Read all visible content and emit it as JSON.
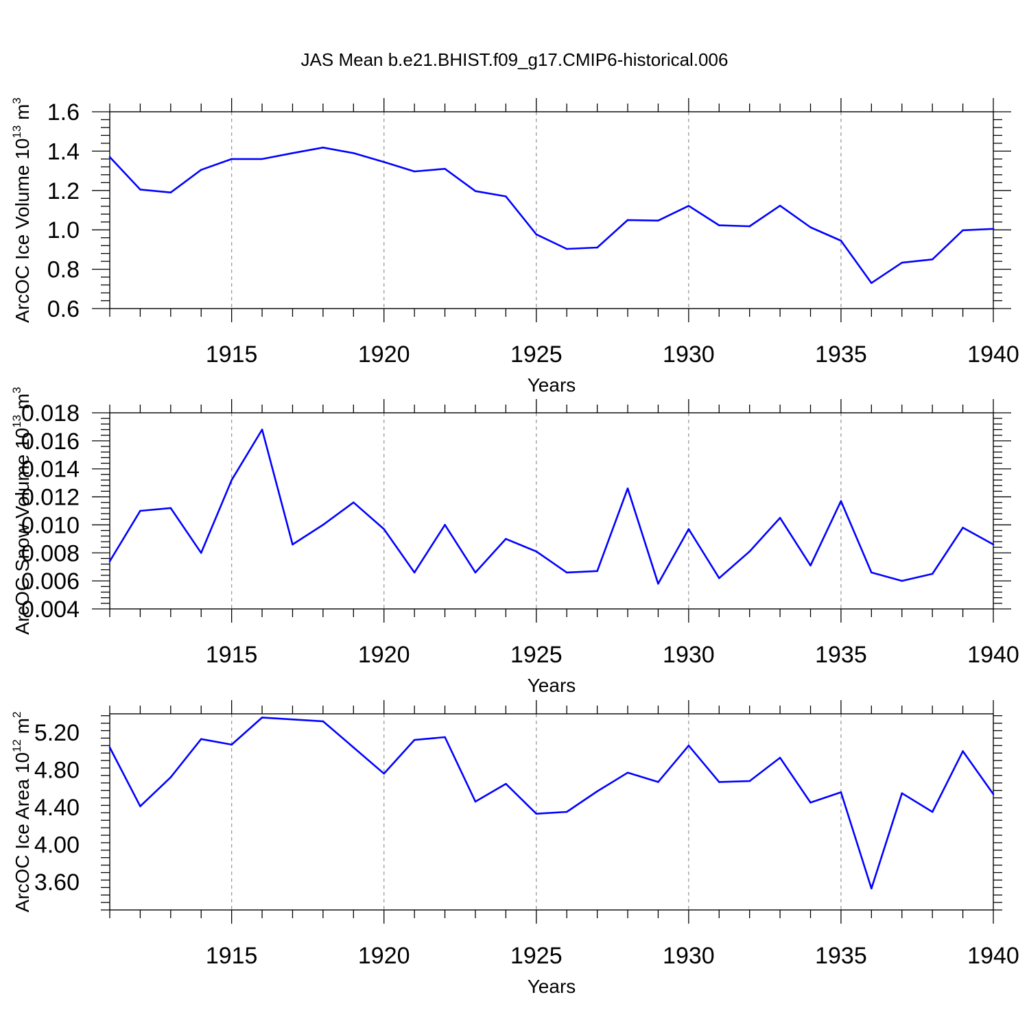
{
  "figure": {
    "title": "JAS Mean b.e21.BHIST.f09_g17.CMIP6-historical.006",
    "series_color": "#0000ff"
  },
  "chart_data": [
    {
      "type": "line",
      "ylabel_main": "ArcOC Ice Volume 10",
      "ylabel_exp": "13",
      "ylabel_unit": " m",
      "ylabel_unit_exp": "3",
      "xlabel": "Years",
      "xlim": [
        1911,
        1940
      ],
      "ylim": [
        0.6,
        1.6
      ],
      "yticks": [
        0.6,
        0.8,
        1.0,
        1.2,
        1.4,
        1.6
      ],
      "ytick_labels": [
        "0.6",
        "0.8",
        "1.0",
        "1.2",
        "1.4",
        "1.6"
      ],
      "xticks": [
        1915,
        1920,
        1925,
        1930,
        1935,
        1940
      ],
      "xtick_labels": [
        "1915",
        "1920",
        "1925",
        "1930",
        "1935",
        "1940"
      ],
      "grid": "vertical dashed at major x ticks",
      "x": [
        1911,
        1912,
        1913,
        1914,
        1915,
        1916,
        1917,
        1918,
        1919,
        1920,
        1921,
        1922,
        1923,
        1924,
        1925,
        1926,
        1927,
        1928,
        1929,
        1930,
        1931,
        1932,
        1933,
        1934,
        1935,
        1936,
        1937,
        1938,
        1939,
        1940
      ],
      "series": [
        {
          "values": [
            1.37,
            1.205,
            1.19,
            1.305,
            1.36,
            1.36,
            1.39,
            1.418,
            1.39,
            1.345,
            1.297,
            1.31,
            1.197,
            1.17,
            0.977,
            0.903,
            0.91,
            1.05,
            1.047,
            1.122,
            1.023,
            1.018,
            1.123,
            1.013,
            0.945,
            0.73,
            0.833,
            0.85,
            0.998,
            1.005
          ]
        }
      ]
    },
    {
      "type": "line",
      "ylabel_main": "ArcOC Snow Volume 10",
      "ylabel_exp": "13",
      "ylabel_unit": " m",
      "ylabel_unit_exp": "3",
      "xlabel": "Years",
      "xlim": [
        1911,
        1940
      ],
      "ylim": [
        0.004,
        0.018
      ],
      "yticks": [
        0.004,
        0.006,
        0.008,
        0.01,
        0.012,
        0.014,
        0.016,
        0.018
      ],
      "ytick_labels": [
        "0.004",
        "0.006",
        "0.008",
        "0.010",
        "0.012",
        "0.014",
        "0.016",
        "0.018"
      ],
      "xticks": [
        1915,
        1920,
        1925,
        1930,
        1935,
        1940
      ],
      "xtick_labels": [
        "1915",
        "1920",
        "1925",
        "1930",
        "1935",
        "1940"
      ],
      "grid": "vertical dashed at major x ticks",
      "x": [
        1911,
        1912,
        1913,
        1914,
        1915,
        1916,
        1917,
        1918,
        1919,
        1920,
        1921,
        1922,
        1923,
        1924,
        1925,
        1926,
        1927,
        1928,
        1929,
        1930,
        1931,
        1932,
        1933,
        1934,
        1935,
        1936,
        1937,
        1938,
        1939,
        1940
      ],
      "series": [
        {
          "values": [
            0.0074,
            0.011,
            0.0112,
            0.008,
            0.0132,
            0.0168,
            0.0086,
            0.01,
            0.0116,
            0.0097,
            0.0066,
            0.01,
            0.0066,
            0.009,
            0.0081,
            0.0066,
            0.0067,
            0.0126,
            0.0058,
            0.0097,
            0.0062,
            0.0081,
            0.0105,
            0.0071,
            0.0117,
            0.0066,
            0.006,
            0.0065,
            0.0098,
            0.0086
          ]
        }
      ]
    },
    {
      "type": "line",
      "ylabel_main": "ArcOC Ice Area 10",
      "ylabel_exp": "12",
      "ylabel_unit": " m",
      "ylabel_unit_exp": "2",
      "xlabel": "Years",
      "xlim": [
        1911,
        1940
      ],
      "ylim": [
        3.3,
        5.4
      ],
      "yticks": [
        3.6,
        4.0,
        4.4,
        4.8,
        5.2
      ],
      "ytick_labels": [
        "3.60",
        "4.00",
        "4.40",
        "4.80",
        "5.20"
      ],
      "xticks": [
        1915,
        1920,
        1925,
        1930,
        1935,
        1940
      ],
      "xtick_labels": [
        "1915",
        "1920",
        "1925",
        "1930",
        "1935",
        "1940"
      ],
      "grid": "vertical dashed at major x ticks",
      "x": [
        1911,
        1912,
        1913,
        1914,
        1915,
        1916,
        1917,
        1918,
        1919,
        1920,
        1921,
        1922,
        1923,
        1924,
        1925,
        1926,
        1927,
        1928,
        1929,
        1930,
        1931,
        1932,
        1933,
        1934,
        1935,
        1936,
        1937,
        1938,
        1939,
        1940
      ],
      "series": [
        {
          "values": [
            5.04,
            4.41,
            4.72,
            5.13,
            5.07,
            5.36,
            5.34,
            5.32,
            5.04,
            4.76,
            5.12,
            5.15,
            4.46,
            4.65,
            4.33,
            4.35,
            4.57,
            4.77,
            4.67,
            5.06,
            4.67,
            4.68,
            4.93,
            4.45,
            4.56,
            3.53,
            4.55,
            4.35,
            5.0,
            4.54
          ]
        }
      ]
    }
  ]
}
